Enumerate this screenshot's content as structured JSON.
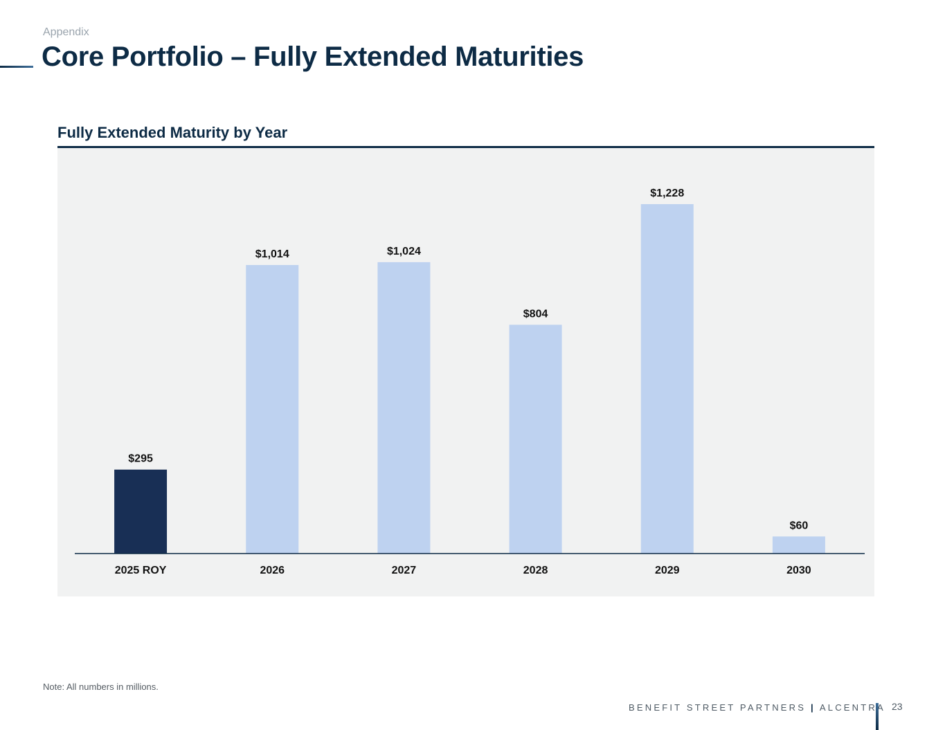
{
  "header": {
    "section_label": "Appendix",
    "title": "Core Portfolio – Fully Extended Maturities"
  },
  "panel": {
    "title": "Fully Extended Maturity by Year"
  },
  "chart_data": {
    "type": "bar",
    "title": "Fully Extended Maturity by Year",
    "categories": [
      "2025 ROY",
      "2026",
      "2027",
      "2028",
      "2029",
      "2030"
    ],
    "values": [
      295,
      1014,
      1024,
      804,
      1228,
      60
    ],
    "data_labels": [
      "$295",
      "$1,014",
      "$1,024",
      "$804",
      "$1,228",
      "$60"
    ],
    "bar_colors": [
      "#182f55",
      "#bed2f0",
      "#bed2f0",
      "#bed2f0",
      "#bed2f0",
      "#bed2f0"
    ],
    "ylim": [
      0,
      1228
    ],
    "xlabel": "",
    "ylabel": "",
    "grid": false,
    "legend": "none",
    "axis_color": "#0d2b45",
    "background": "#f1f2f2"
  },
  "footer": {
    "note": "Note: All numbers in millions.",
    "brand_left": "BENEFIT STREET PARTNERS",
    "brand_separator": "|",
    "brand_right": "ALCENTRA",
    "page_number": "23"
  }
}
